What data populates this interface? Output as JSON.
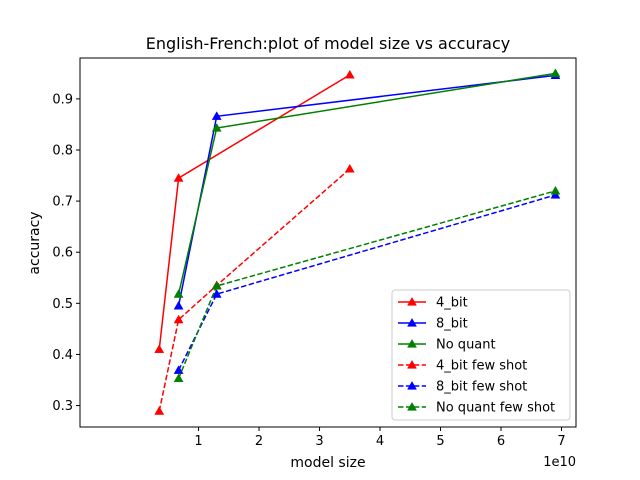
{
  "chart_data": {
    "type": "line",
    "title": "English-French:plot of model size vs accuracy",
    "xlabel": "model size",
    "ylabel": "accuracy",
    "x_offset_label": "1e10",
    "xlim": [
      -0.96,
      7.24
    ],
    "ylim": [
      0.258,
      0.98
    ],
    "xticks": [
      {
        "value": 1,
        "label": "1"
      },
      {
        "value": 2,
        "label": "2"
      },
      {
        "value": 3,
        "label": "3"
      },
      {
        "value": 4,
        "label": "4"
      },
      {
        "value": 5,
        "label": "5"
      },
      {
        "value": 6,
        "label": "6"
      },
      {
        "value": 7,
        "label": "7"
      }
    ],
    "yticks": [
      {
        "value": 0.3,
        "label": "0.3"
      },
      {
        "value": 0.4,
        "label": "0.4"
      },
      {
        "value": 0.5,
        "label": "0.5"
      },
      {
        "value": 0.6,
        "label": "0.6"
      },
      {
        "value": 0.7,
        "label": "0.7"
      },
      {
        "value": 0.8,
        "label": "0.8"
      },
      {
        "value": 0.9,
        "label": "0.9"
      }
    ],
    "grid": false,
    "legend_position": "lower-right",
    "series": [
      {
        "name": "4_bit",
        "color": "#ff0000",
        "dashed": false,
        "x": [
          0.35,
          0.67,
          3.5
        ],
        "y": [
          0.41,
          0.745,
          0.947
        ]
      },
      {
        "name": "8_bit",
        "color": "#0000ff",
        "dashed": false,
        "x": [
          0.67,
          1.3,
          6.9
        ],
        "y": [
          0.495,
          0.866,
          0.946
        ]
      },
      {
        "name": "No quant",
        "color": "#008000",
        "dashed": false,
        "x": [
          0.67,
          1.3,
          6.9
        ],
        "y": [
          0.518,
          0.843,
          0.95
        ]
      },
      {
        "name": "4_bit few shot",
        "color": "#ff0000",
        "dashed": true,
        "x": [
          0.35,
          0.67,
          1.3,
          3.5
        ],
        "y": [
          0.289,
          0.468,
          0.535,
          0.763
        ]
      },
      {
        "name": "8_bit few shot",
        "color": "#0000ff",
        "dashed": true,
        "x": [
          0.67,
          1.3,
          6.9
        ],
        "y": [
          0.369,
          0.518,
          0.712
        ]
      },
      {
        "name": "No quant few shot",
        "color": "#008000",
        "dashed": true,
        "x": [
          0.67,
          1.3,
          6.9
        ],
        "y": [
          0.353,
          0.534,
          0.72
        ]
      }
    ]
  }
}
